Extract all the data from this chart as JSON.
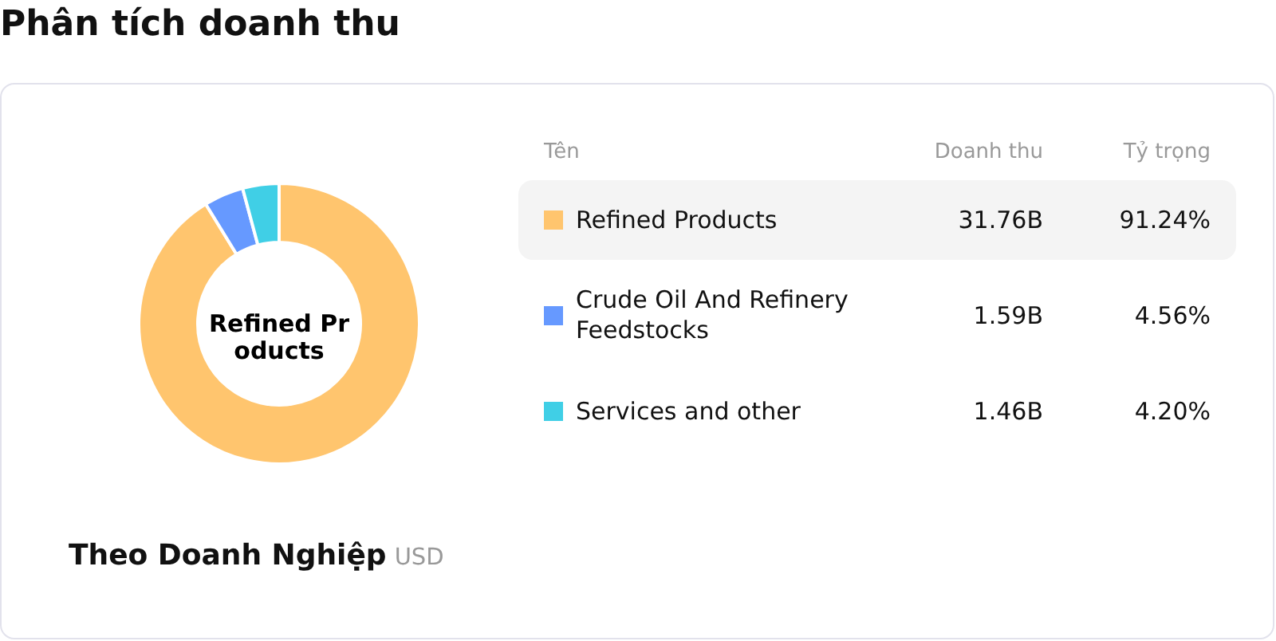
{
  "chart_data": {
    "type": "donut",
    "title": "Phân tích doanh thu",
    "subtitle": "Theo Doanh Nghiệp",
    "legend_title": "Tên",
    "categories": [
      "Refined Products",
      "Crude Oil And Refinery Feedstocks",
      "Services and other"
    ],
    "values": [
      31.76,
      1.59,
      1.46
    ],
    "value_labels": [
      "31.76B",
      "1.59B",
      "1.46B"
    ],
    "colors": [
      "#ffc56e",
      "#6699ff",
      "#40cfe6"
    ],
    "legend": "right",
    "annotations": [
      "Refined Products",
      "Doanh thu",
      "Tỷ trọng",
      "USD",
      "91.24%",
      "4.56%",
      "4.20%"
    ]
  }
}
